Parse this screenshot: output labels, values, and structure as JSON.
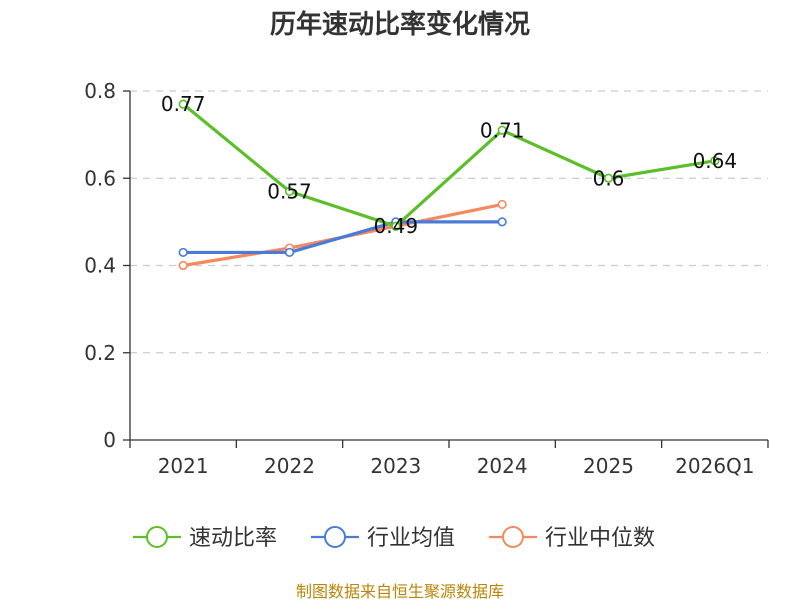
{
  "chart_data": {
    "type": "line",
    "title": "历年速动比率变化情况",
    "xlabel": "",
    "ylabel": "",
    "categories": [
      "2021",
      "2022",
      "2023",
      "2024",
      "2025",
      "2026Q1"
    ],
    "ylim": [
      0,
      0.8
    ],
    "yticks": [
      "0",
      "0.2",
      "0.4",
      "0.6",
      "0.8"
    ],
    "grid": true,
    "legend_position": "bottom",
    "series": [
      {
        "name": "速动比率",
        "color": "#5cbf2a",
        "values": [
          0.77,
          0.57,
          0.49,
          0.71,
          0.6,
          0.64
        ],
        "labels": [
          "0.77",
          "0.57",
          "0.49",
          "0.71",
          "0.6",
          "0.64"
        ]
      },
      {
        "name": "行业均值",
        "color": "#4a7bd6",
        "values": [
          0.43,
          0.43,
          0.5,
          0.5,
          null,
          null
        ]
      },
      {
        "name": "行业中位数",
        "color": "#f4895f",
        "values": [
          0.4,
          0.44,
          0.49,
          0.54,
          null,
          null
        ]
      }
    ],
    "source": "制图数据来自恒生聚源数据库"
  }
}
